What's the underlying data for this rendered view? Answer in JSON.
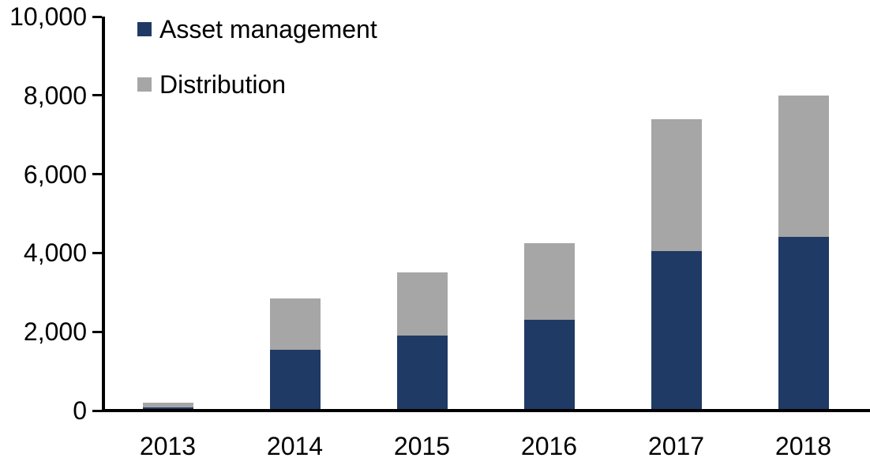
{
  "chart_data": {
    "type": "bar",
    "stacked": true,
    "title": "",
    "xlabel": "",
    "ylabel": "",
    "categories": [
      "2013",
      "2014",
      "2015",
      "2016",
      "2017",
      "2018"
    ],
    "series": [
      {
        "name": "Asset management",
        "color": "#1F3A64",
        "values": [
          80,
          1550,
          1900,
          2300,
          4050,
          4400
        ]
      },
      {
        "name": "Distribution",
        "color": "#A6A6A6",
        "values": [
          130,
          1300,
          1600,
          1950,
          3350,
          3600
        ]
      }
    ],
    "stack_totals": [
      210,
      2850,
      3500,
      4250,
      7400,
      8000
    ],
    "ylim": [
      0,
      10000
    ],
    "ytick_step": 2000,
    "ytick_labels": [
      "0",
      "2,000",
      "4,000",
      "6,000",
      "8,000",
      "10,000"
    ],
    "grid": false,
    "legend_position": "top-left",
    "axis_color": "#000000",
    "text_color": "#000000",
    "background_color": "#FFFFFF"
  }
}
